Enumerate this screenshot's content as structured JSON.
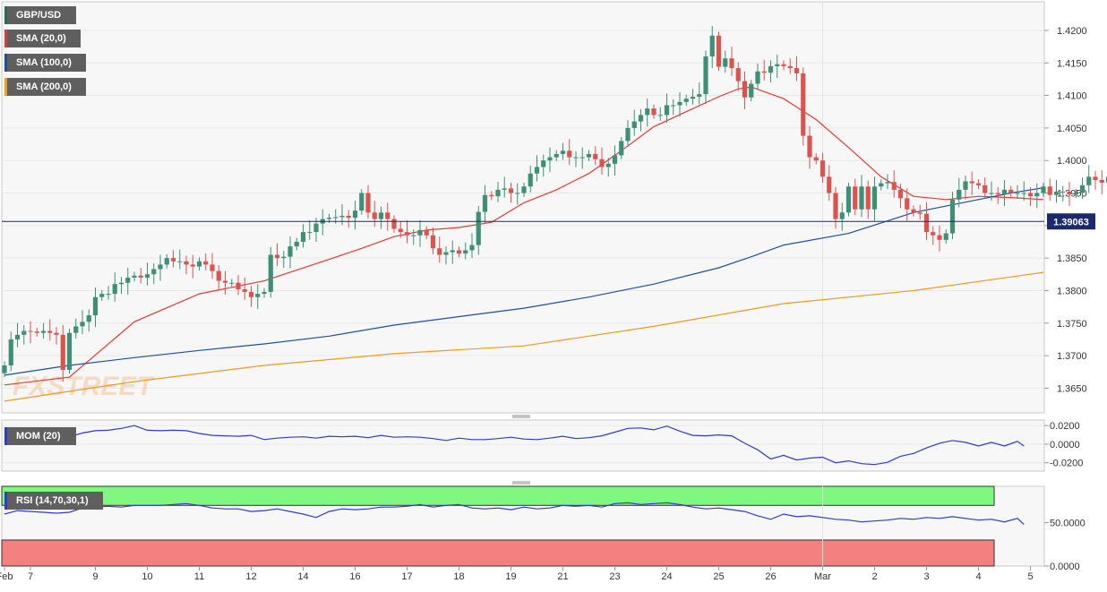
{
  "legend": {
    "symbol": "GBP/USD",
    "sma20": {
      "label": "SMA (20,0)",
      "color": "#e53935"
    },
    "sma100": {
      "label": "SMA (100,0)",
      "color": "#1f4f9e"
    },
    "sma200": {
      "label": "SMA (200,0)",
      "color": "#f29a1f"
    }
  },
  "watermark": "FXSTREET",
  "price_label": "1.39063",
  "mom_label": "MOM (20)",
  "rsi_label": "RSI (14,70,30,1)",
  "colors": {
    "up": "#3e8f75",
    "down": "#d9534f",
    "price_line": "#1a2a6c",
    "mom_line": "#2f39d6",
    "rsi_line": "#2f39d6",
    "overbought": "#80f780",
    "oversold": "#f48080"
  },
  "chart_data": [
    {
      "type": "candlestick",
      "title": "GBP/USD",
      "y_ticks": [
        "1.4200",
        "1.4150",
        "1.4100",
        "1.4050",
        "1.4000",
        "1.3950",
        "1.3900",
        "1.3850",
        "1.3800",
        "1.3750",
        "1.3700",
        "1.3650"
      ],
      "ylim": [
        1.3612,
        1.4244
      ],
      "x_ticks": [
        {
          "label": "Feb",
          "i": 0
        },
        {
          "label": "7",
          "i": 4
        },
        {
          "label": "9",
          "i": 14
        },
        {
          "label": "10",
          "i": 22
        },
        {
          "label": "11",
          "i": 30
        },
        {
          "label": "12",
          "i": 38
        },
        {
          "label": "14",
          "i": 46
        },
        {
          "label": "16",
          "i": 54
        },
        {
          "label": "17",
          "i": 62
        },
        {
          "label": "18",
          "i": 70
        },
        {
          "label": "19",
          "i": 78
        },
        {
          "label": "21",
          "i": 86
        },
        {
          "label": "23",
          "i": 94
        },
        {
          "label": "24",
          "i": 102
        },
        {
          "label": "25",
          "i": 110
        },
        {
          "label": "26",
          "i": 118
        },
        {
          "label": "Mar",
          "i": 126
        },
        {
          "label": "2",
          "i": 134
        },
        {
          "label": "3",
          "i": 142
        },
        {
          "label": "4",
          "i": 150
        },
        {
          "label": "5",
          "i": 158
        }
      ],
      "last_price": 1.39063,
      "closes": [
        1.3685,
        1.3725,
        1.3732,
        1.3738,
        1.3737,
        1.3735,
        1.3738,
        1.3735,
        1.3732,
        1.3678,
        1.3735,
        1.3745,
        1.3752,
        1.3762,
        1.379,
        1.3795,
        1.3795,
        1.381,
        1.3812,
        1.382,
        1.3823,
        1.382,
        1.3825,
        1.3833,
        1.384,
        1.385,
        1.3845,
        1.3845,
        1.384,
        1.3837,
        1.3845,
        1.384,
        1.383,
        1.3815,
        1.3812,
        1.3812,
        1.3802,
        1.3798,
        1.379,
        1.3795,
        1.3798,
        1.3855,
        1.385,
        1.3852,
        1.3868,
        1.3875,
        1.389,
        1.389,
        1.3903,
        1.391,
        1.3912,
        1.3913,
        1.3915,
        1.3912,
        1.3923,
        1.395,
        1.392,
        1.391,
        1.392,
        1.391,
        1.3895,
        1.389,
        1.3885,
        1.3885,
        1.3893,
        1.3885,
        1.3865,
        1.3855,
        1.3859,
        1.3862,
        1.3857,
        1.3862,
        1.387,
        1.3921,
        1.3947,
        1.3945,
        1.3955,
        1.3957,
        1.395,
        1.395,
        1.396,
        1.398,
        1.399,
        1.4,
        1.4005,
        1.401,
        1.4015,
        1.4005,
        1.4005,
        1.4005,
        1.401,
        1.4002,
        1.399,
        1.3995,
        1.4008,
        1.403,
        1.405,
        1.406,
        1.407,
        1.408,
        1.407,
        1.407,
        1.4085,
        1.4085,
        1.409,
        1.4095,
        1.4098,
        1.4102,
        1.416,
        1.4192,
        1.4144,
        1.4157,
        1.4142,
        1.4122,
        1.4097,
        1.4118,
        1.4137,
        1.4135,
        1.4145,
        1.4148,
        1.4145,
        1.4142,
        1.4134,
        1.4038,
        1.4005,
        1.4,
        1.3975,
        1.395,
        1.391,
        1.392,
        1.396,
        1.3925,
        1.396,
        1.3925,
        1.396,
        1.3965,
        1.3967,
        1.3955,
        1.3942,
        1.3925,
        1.392,
        1.3918,
        1.389,
        1.3885,
        1.3878,
        1.3888,
        1.394,
        1.3955,
        1.3968,
        1.3965,
        1.3962,
        1.395,
        1.395,
        1.3948,
        1.3955,
        1.395,
        1.395,
        1.395,
        1.3945,
        1.395,
        1.396,
        1.3947,
        1.3952,
        1.3952,
        1.3948,
        1.395,
        1.3962,
        1.3975,
        1.397,
        1.3966,
        1.3975,
        1.3967,
        1.3965,
        1.399,
        1.3906
      ],
      "series": [
        {
          "name": "SMA (20,0)",
          "x": [
            0,
            10,
            20,
            30,
            40,
            50,
            55,
            60,
            65,
            70,
            75,
            80,
            85,
            90,
            95,
            100,
            105,
            110,
            113,
            115,
            120,
            125,
            130,
            135,
            140,
            145,
            150,
            155,
            160
          ],
          "values": [
            1.3655,
            1.3667,
            1.3752,
            1.3795,
            1.3815,
            1.3848,
            1.3865,
            1.3883,
            1.3893,
            1.3897,
            1.3905,
            1.3935,
            1.3955,
            1.398,
            1.4015,
            1.4052,
            1.4075,
            1.4098,
            1.411,
            1.4113,
            1.4095,
            1.4063,
            1.402,
            1.3975,
            1.3945,
            1.394,
            1.3945,
            1.3943,
            1.394
          ]
        },
        {
          "name": "SMA (100,0)",
          "x": [
            0,
            10,
            20,
            30,
            40,
            50,
            60,
            70,
            80,
            90,
            100,
            110,
            115,
            120,
            130,
            140,
            150,
            155,
            160
          ],
          "values": [
            1.367,
            1.3685,
            1.3697,
            1.3708,
            1.3718,
            1.373,
            1.3747,
            1.376,
            1.3773,
            1.379,
            1.381,
            1.3835,
            1.3852,
            1.387,
            1.3888,
            1.392,
            1.394,
            1.395,
            1.3958
          ]
        },
        {
          "name": "SMA (200,0)",
          "x": [
            0,
            20,
            40,
            60,
            80,
            100,
            120,
            140,
            160
          ],
          "values": [
            1.363,
            1.366,
            1.3685,
            1.3703,
            1.3715,
            1.3745,
            1.378,
            1.38,
            1.3828
          ]
        }
      ]
    },
    {
      "type": "line",
      "title": "MOM (20)",
      "y_ticks": [
        "0.0200",
        "0.0000",
        "-0.0200"
      ],
      "ylim": [
        -0.029,
        0.026
      ],
      "x": [
        0,
        2,
        4,
        6,
        8,
        10,
        12,
        14,
        16,
        18,
        20,
        22,
        24,
        26,
        28,
        30,
        32,
        34,
        36,
        38,
        40,
        42,
        44,
        46,
        48,
        50,
        52,
        54,
        56,
        58,
        60,
        62,
        64,
        66,
        68,
        70,
        72,
        74,
        76,
        78,
        80,
        82,
        84,
        86,
        88,
        90,
        92,
        94,
        96,
        98,
        100,
        102,
        104,
        106,
        108,
        110,
        112,
        114,
        116,
        118,
        120,
        122,
        124,
        126,
        128,
        130,
        132,
        134,
        136,
        138,
        140,
        142,
        144,
        146,
        148,
        150,
        152,
        154,
        156,
        157
      ],
      "values": [
        0.003,
        0.0065,
        0.0075,
        0.004,
        0.0055,
        0.008,
        0.012,
        0.0145,
        0.015,
        0.017,
        0.02,
        0.015,
        0.0145,
        0.015,
        0.0145,
        0.0115,
        0.0095,
        0.009,
        0.0085,
        0.0095,
        0.005,
        0.0065,
        0.0075,
        0.008,
        0.0065,
        0.0085,
        0.008,
        0.0085,
        0.007,
        0.0095,
        0.0075,
        0.008,
        0.0075,
        0.006,
        0.004,
        0.0065,
        0.005,
        0.005,
        0.006,
        0.0075,
        0.0055,
        0.005,
        0.0065,
        0.0085,
        0.006,
        0.007,
        0.009,
        0.013,
        0.017,
        0.0175,
        0.0155,
        0.0195,
        0.014,
        0.0095,
        0.009,
        0.01,
        0.009,
        0.001,
        -0.006,
        -0.016,
        -0.012,
        -0.017,
        -0.015,
        -0.014,
        -0.02,
        -0.018,
        -0.021,
        -0.022,
        -0.0195,
        -0.013,
        -0.01,
        -0.004,
        0.001,
        0.004,
        0.002,
        -0.002,
        0.002,
        -0.002,
        0.003,
        -0.002
      ]
    },
    {
      "type": "line",
      "title": "RSI (14,70,30,1)",
      "y_ticks": [
        "50.0000",
        "0.0000"
      ],
      "ylim": [
        0,
        92
      ],
      "bands": {
        "overbought": [
          70,
          92
        ],
        "oversold": [
          0,
          30
        ]
      },
      "x": [
        0,
        2,
        4,
        6,
        8,
        10,
        12,
        14,
        16,
        18,
        20,
        22,
        24,
        26,
        28,
        30,
        32,
        34,
        36,
        38,
        40,
        42,
        44,
        46,
        48,
        50,
        52,
        54,
        56,
        58,
        60,
        62,
        64,
        66,
        68,
        70,
        72,
        74,
        76,
        78,
        80,
        82,
        84,
        86,
        88,
        90,
        92,
        94,
        96,
        98,
        100,
        102,
        104,
        106,
        108,
        110,
        112,
        114,
        116,
        118,
        120,
        122,
        124,
        126,
        128,
        130,
        132,
        134,
        136,
        138,
        140,
        142,
        144,
        146,
        148,
        150,
        152,
        154,
        156,
        157
      ],
      "values": [
        60,
        64,
        63,
        62,
        61,
        62,
        67,
        68,
        69,
        68,
        70,
        70,
        70,
        71,
        72,
        70,
        67,
        66,
        66,
        63,
        64,
        66,
        63,
        60,
        56,
        63,
        66,
        65,
        66,
        68,
        68,
        69,
        71,
        68,
        70,
        71,
        67,
        66,
        67,
        65,
        68,
        66,
        67,
        70,
        69,
        70,
        68,
        72,
        73,
        71,
        72,
        73,
        71,
        68,
        66,
        67,
        65,
        63,
        58,
        54,
        60,
        57,
        58,
        56,
        54,
        53,
        51,
        52,
        53,
        55,
        54,
        56,
        55,
        57,
        55,
        53,
        54,
        51,
        55,
        48
      ]
    }
  ]
}
